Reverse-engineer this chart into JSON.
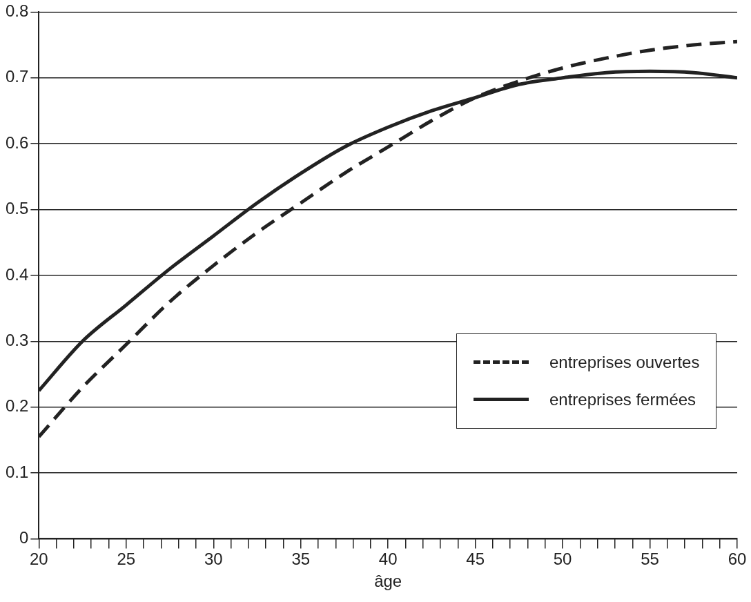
{
  "chart_data": {
    "type": "line",
    "xlabel": "âge",
    "xlim": [
      20,
      60
    ],
    "xticks": [
      20,
      {
        "value": 21,
        "label": null
      },
      {
        "value": 22,
        "label": null
      },
      {
        "value": 23,
        "label": null
      },
      {
        "value": 24,
        "label": null
      },
      25,
      {
        "value": 26,
        "label": null
      },
      {
        "value": 27,
        "label": null
      },
      {
        "value": 28,
        "label": null
      },
      {
        "value": 29,
        "label": null
      },
      30,
      {
        "value": 31,
        "label": null
      },
      {
        "value": 32,
        "label": null
      },
      {
        "value": 33,
        "label": null
      },
      {
        "value": 34,
        "label": null
      },
      35,
      {
        "value": 36,
        "label": null
      },
      {
        "value": 37,
        "label": null
      },
      {
        "value": 38,
        "label": null
      },
      {
        "value": 39,
        "label": null
      },
      40,
      {
        "value": 41,
        "label": null
      },
      {
        "value": 42,
        "label": null
      },
      {
        "value": 43,
        "label": null
      },
      {
        "value": 44,
        "label": null
      },
      45,
      {
        "value": 46,
        "label": null
      },
      {
        "value": 47,
        "label": null
      },
      {
        "value": 48,
        "label": null
      },
      {
        "value": 49,
        "label": null
      },
      50,
      {
        "value": 51,
        "label": null
      },
      {
        "value": 52,
        "label": null
      },
      {
        "value": 53,
        "label": null
      },
      {
        "value": 54,
        "label": null
      },
      55,
      {
        "value": 56,
        "label": null
      },
      {
        "value": 57,
        "label": null
      },
      {
        "value": 58,
        "label": null
      },
      {
        "value": 59,
        "label": null
      },
      60
    ],
    "ylim": [
      0,
      0.8
    ],
    "yticks": [
      0,
      0.1,
      0.2,
      0.3,
      0.4,
      0.5,
      0.6,
      0.7,
      0.8
    ],
    "grid": "y",
    "legend": "right",
    "marker": "none",
    "x": [
      20,
      22.5,
      25,
      27.5,
      30,
      32.5,
      35,
      37.5,
      40,
      42.5,
      45,
      47.5,
      50,
      52.5,
      55,
      57.5,
      60
    ],
    "series": [
      {
        "name": "entreprises ouvertes",
        "color": "#222222",
        "line_style": "dashed",
        "values": [
          0.155,
          0.23,
          0.295,
          0.36,
          0.415,
          0.465,
          0.51,
          0.555,
          0.595,
          0.635,
          0.67,
          0.695,
          0.715,
          0.73,
          0.742,
          0.75,
          0.755
        ]
      },
      {
        "name": "entreprises fermées",
        "color": "#222222",
        "line_style": "solid",
        "values": [
          0.225,
          0.3,
          0.355,
          0.41,
          0.46,
          0.51,
          0.555,
          0.595,
          0.625,
          0.65,
          0.67,
          0.69,
          0.7,
          0.708,
          0.71,
          0.708,
          0.7
        ]
      }
    ]
  }
}
